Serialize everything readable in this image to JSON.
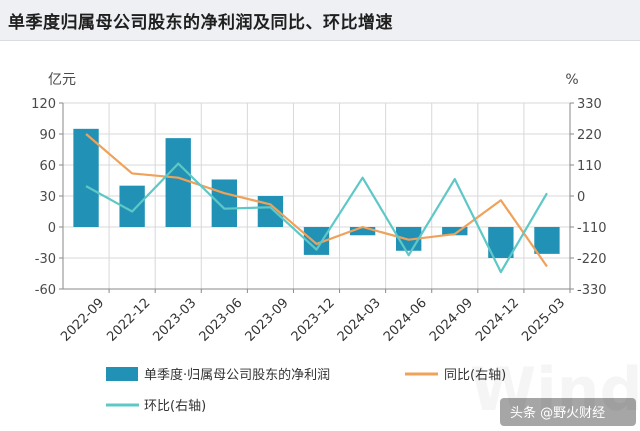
{
  "title": "单季度归属母公司股东的净利润及同比、环比增速",
  "watermark": "头条 @野火财经",
  "colors": {
    "bar": "#2291b6",
    "yoy": "#f0a15a",
    "qoq": "#5ec8c6",
    "grid": "#d8d8d8",
    "axis": "#8a8a8a"
  },
  "chart_data": {
    "type": "bar",
    "categories": [
      "2022-09",
      "2022-12",
      "2023-03",
      "2023-06",
      "2023-09",
      "2023-12",
      "2024-03",
      "2024-06",
      "2024-09",
      "2024-12",
      "2025-03"
    ],
    "left_axis": {
      "unit": "亿元",
      "ylim": [
        -60,
        120
      ],
      "ticks": [
        120,
        90,
        60,
        30,
        0,
        -30,
        -60
      ]
    },
    "right_axis": {
      "unit": "%",
      "ylim": [
        -330,
        330
      ],
      "ticks": [
        330,
        220,
        110,
        0,
        -110,
        -220,
        -330
      ]
    },
    "grid": true,
    "legend_position": "bottom",
    "series": [
      {
        "name": "单季度·归属母公司股东的净利润",
        "type": "bar",
        "axis": "left",
        "values": [
          95,
          40,
          86,
          46,
          30,
          -27,
          -8,
          -23,
          -8,
          -30,
          -26
        ]
      },
      {
        "name": "同比(右轴)",
        "type": "line",
        "axis": "right",
        "values": [
          220,
          80,
          65,
          10,
          -30,
          -170,
          -110,
          -155,
          -135,
          -15,
          -250
        ]
      },
      {
        "name": "环比(右轴)",
        "type": "line",
        "axis": "right",
        "values": [
          35,
          -55,
          115,
          -45,
          -40,
          -190,
          65,
          -210,
          60,
          -270,
          10
        ]
      }
    ]
  }
}
